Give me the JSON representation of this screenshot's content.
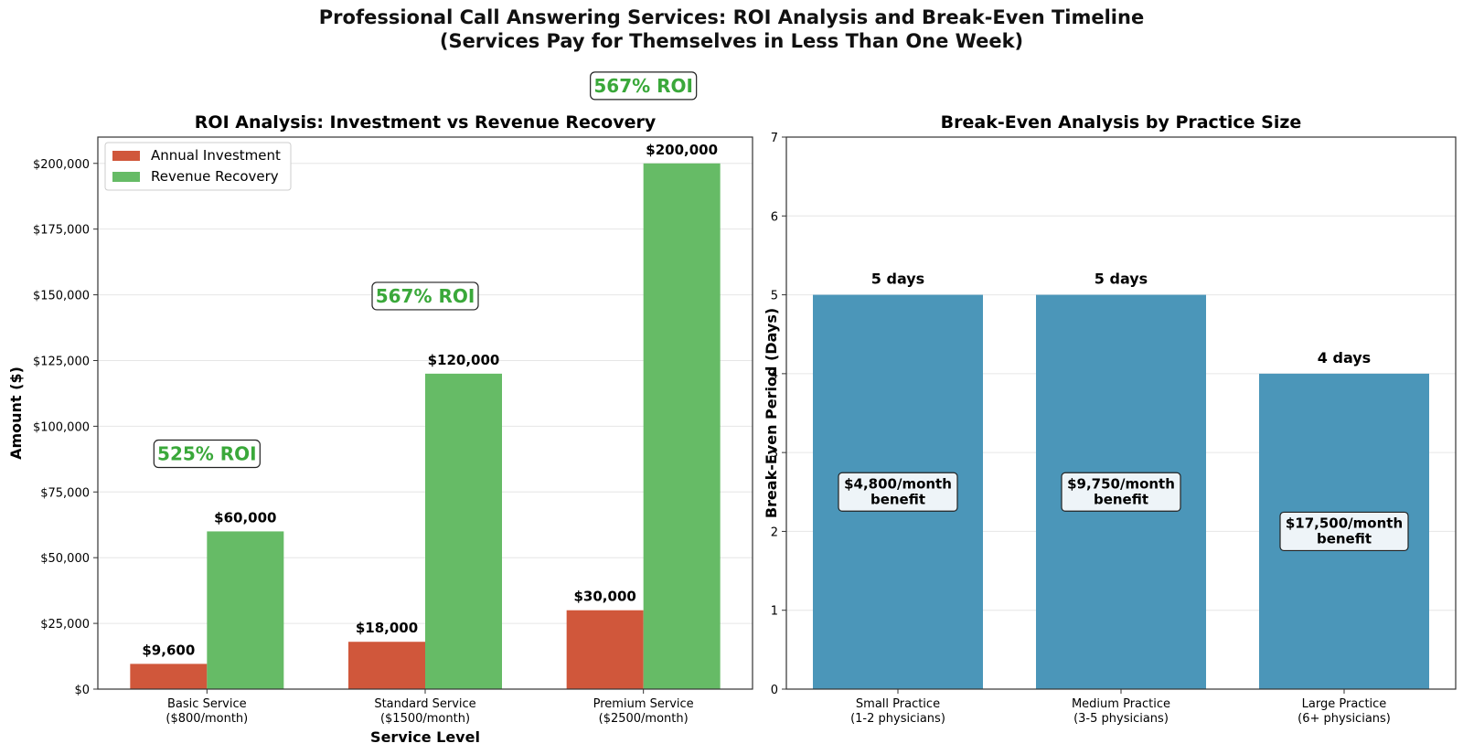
{
  "figure": {
    "title_line1": "Professional Call Answering Services: ROI Analysis and Break-Even Timeline",
    "title_line2": "(Services Pay for Themselves in Less Than One Week)"
  },
  "chart_data": [
    {
      "type": "bar",
      "title": "ROI Analysis: Investment vs Revenue Recovery",
      "xlabel": "Service Level",
      "ylabel": "Amount ($)",
      "categories": [
        "Basic Service\n($800/month)",
        "Standard Service\n($1500/month)",
        "Premium Service\n($2500/month)"
      ],
      "series": [
        {
          "name": "Annual Investment",
          "color": "#d0573b",
          "values": [
            9600,
            18000,
            30000
          ],
          "labels": [
            "$9,600",
            "$18,000",
            "$30,000"
          ]
        },
        {
          "name": "Revenue Recovery",
          "color": "#66bb66",
          "values": [
            60000,
            120000,
            200000
          ],
          "labels": [
            "$60,000",
            "$120,000",
            "$200,000"
          ]
        }
      ],
      "roi_annotations": [
        "525% ROI",
        "567% ROI",
        "567% ROI"
      ],
      "roi_color": "#3aa83a",
      "ylim": [
        0,
        210000
      ],
      "yticks": [
        0,
        25000,
        50000,
        75000,
        100000,
        125000,
        150000,
        175000,
        200000
      ],
      "ytick_labels": [
        "$0",
        "$25,000",
        "$50,000",
        "$75,000",
        "$100,000",
        "$125,000",
        "$150,000",
        "$175,000",
        "$200,000"
      ],
      "legend_position": "upper-left",
      "grid": "y"
    },
    {
      "type": "bar",
      "title": "Break-Even Analysis by Practice Size",
      "xlabel": "",
      "ylabel": "Break-Even Period (Days)",
      "categories": [
        "Small Practice\n(1-2 physicians)",
        "Medium Practice\n(3-5 physicians)",
        "Large Practice\n(6+ physicians)"
      ],
      "values": [
        5,
        5,
        4
      ],
      "value_labels": [
        "5 days",
        "5 days",
        "4 days"
      ],
      "benefit_labels": [
        "$4,800/month\nbenefit",
        "$9,750/month\nbenefit",
        "$17,500/month\nbenefit"
      ],
      "benefit_label_heights": [
        2.5,
        2.5,
        2
      ],
      "color": "#4b96b9",
      "ylim": [
        0,
        7
      ],
      "yticks": [
        0,
        1,
        2,
        3,
        4,
        5,
        6,
        7
      ],
      "ytick_labels": [
        "0",
        "1",
        "2",
        "3",
        "4",
        "5",
        "6",
        "7"
      ],
      "grid": "y"
    }
  ]
}
